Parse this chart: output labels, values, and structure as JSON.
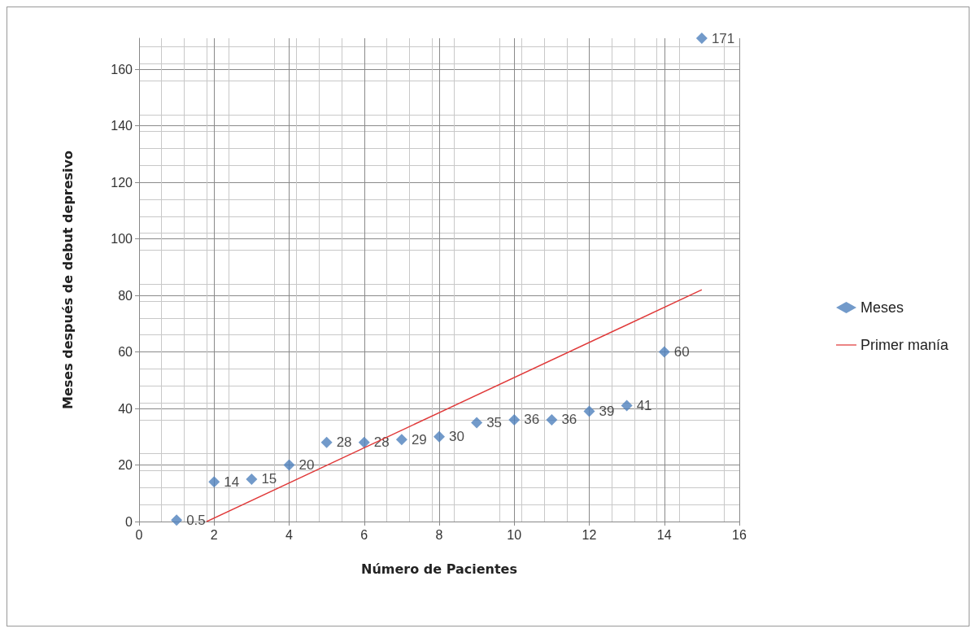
{
  "chart_data": {
    "type": "scatter",
    "xlabel": "Número de Pacientes",
    "ylabel": "Meses después de debut depresivo",
    "xlim": [
      0,
      16
    ],
    "xticks": [
      0,
      2,
      4,
      6,
      8,
      10,
      12,
      14,
      16
    ],
    "ylim": [
      0,
      171
    ],
    "yticks": [
      0,
      20,
      40,
      60,
      80,
      100,
      120,
      140,
      160
    ],
    "grid": true,
    "legend": "right",
    "marker": "diamond",
    "series": [
      {
        "name": "Meses",
        "color": "#4f81bd",
        "x": [
          1,
          2,
          3,
          4,
          5,
          6,
          7,
          8,
          9,
          10,
          11,
          12,
          13,
          14,
          15
        ],
        "values": [
          0.5,
          14,
          15,
          20,
          28,
          28,
          29,
          30,
          35,
          36,
          36,
          39,
          41,
          60,
          171
        ],
        "value_labels": [
          "0.5",
          "14",
          "15",
          "20",
          "28",
          "28",
          "29",
          "30",
          "35",
          "36",
          "36",
          "39",
          "41",
          "60",
          "171"
        ]
      },
      {
        "name": "Primer manía",
        "type": "line",
        "marker": "none",
        "color": "#e03a3a",
        "x": [
          1.8,
          15
        ],
        "values": [
          0,
          82
        ]
      }
    ]
  }
}
